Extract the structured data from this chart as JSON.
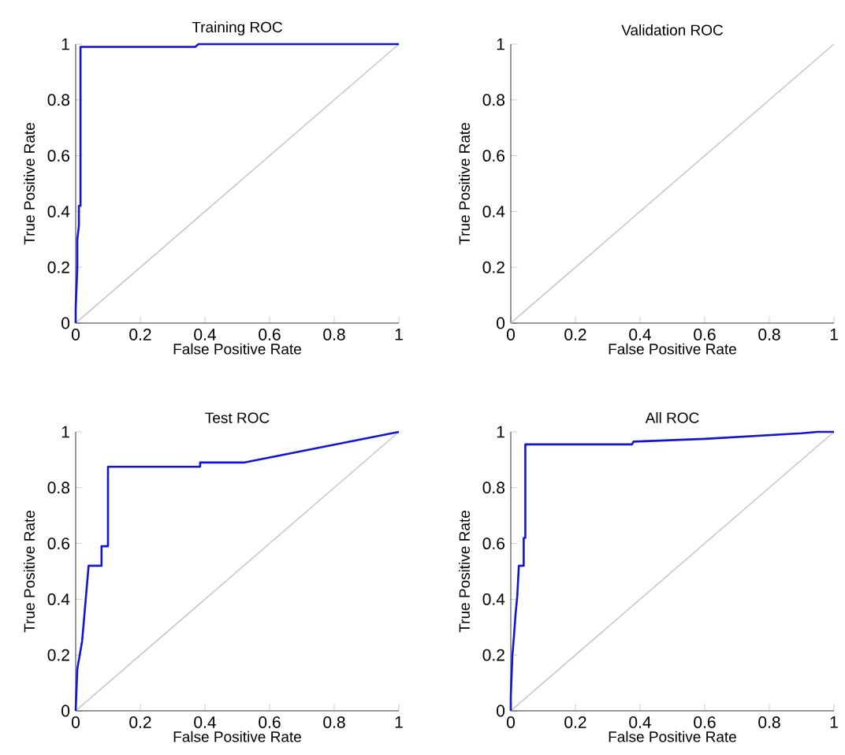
{
  "chart_data": [
    {
      "type": "line",
      "title": "Training ROC",
      "xlabel": "False Positive Rate",
      "ylabel": "True Positive Rate",
      "xlim": [
        0,
        1
      ],
      "ylim": [
        0,
        1
      ],
      "xticks": [
        0,
        0.2,
        0.4,
        0.6,
        0.8,
        1
      ],
      "yticks": [
        0,
        0.2,
        0.4,
        0.6,
        0.8,
        1
      ],
      "marker": "none",
      "line_style": "solid",
      "series": [
        {
          "color": "#c8c8c8",
          "x": [
            0,
            1
          ],
          "values": [
            0,
            1
          ]
        },
        {
          "color": "#1414d2",
          "x": [
            0,
            0,
            0.005,
            0.005,
            0.01,
            0.01,
            0.015,
            0.015,
            0.37,
            0.38,
            1
          ],
          "values": [
            0,
            0.05,
            0.2,
            0.3,
            0.35,
            0.42,
            0.42,
            0.99,
            0.99,
            1,
            1
          ]
        }
      ]
    },
    {
      "type": "line",
      "title": "Validation ROC",
      "xlabel": "False Positive Rate",
      "ylabel": "True Positive Rate",
      "xlim": [
        0,
        1
      ],
      "ylim": [
        0,
        1
      ],
      "xticks": [
        0,
        0.2,
        0.4,
        0.6,
        0.8,
        1
      ],
      "yticks": [
        0,
        0.2,
        0.4,
        0.6,
        0.8,
        1
      ],
      "marker": "none",
      "line_style": "solid",
      "series": [
        {
          "color": "#c8c8c8",
          "x": [
            0,
            1
          ],
          "values": [
            0,
            1
          ]
        }
      ]
    },
    {
      "type": "line",
      "title": "Test ROC",
      "xlabel": "False Positive Rate",
      "ylabel": "True Positive Rate",
      "xlim": [
        0,
        1
      ],
      "ylim": [
        0,
        1
      ],
      "xticks": [
        0,
        0.2,
        0.4,
        0.6,
        0.8,
        1
      ],
      "yticks": [
        0,
        0.2,
        0.4,
        0.6,
        0.8,
        1
      ],
      "marker": "none",
      "line_style": "solid",
      "series": [
        {
          "color": "#c8c8c8",
          "x": [
            0,
            1
          ],
          "values": [
            0,
            1
          ]
        },
        {
          "color": "#1414d2",
          "x": [
            0,
            0.005,
            0.02,
            0.04,
            0.08,
            0.08,
            0.1,
            0.1,
            0.385,
            0.385,
            0.52,
            1
          ],
          "values": [
            0,
            0.15,
            0.25,
            0.52,
            0.52,
            0.59,
            0.59,
            0.875,
            0.875,
            0.89,
            0.89,
            1
          ]
        }
      ]
    },
    {
      "type": "line",
      "title": "All ROC",
      "xlabel": "False Positive Rate",
      "ylabel": "True Positive Rate",
      "xlim": [
        0,
        1
      ],
      "ylim": [
        0,
        1
      ],
      "xticks": [
        0,
        0.2,
        0.4,
        0.6,
        0.8,
        1
      ],
      "yticks": [
        0,
        0.2,
        0.4,
        0.6,
        0.8,
        1
      ],
      "marker": "none",
      "line_style": "solid",
      "series": [
        {
          "color": "#c8c8c8",
          "x": [
            0,
            1
          ],
          "values": [
            0,
            1
          ]
        },
        {
          "color": "#1414d2",
          "x": [
            0,
            0,
            0.005,
            0.01,
            0.015,
            0.02,
            0.025,
            0.04,
            0.04,
            0.045,
            0.045,
            0.375,
            0.38,
            0.6,
            0.9,
            0.95,
            1
          ],
          "values": [
            0,
            0.05,
            0.2,
            0.27,
            0.35,
            0.41,
            0.52,
            0.52,
            0.62,
            0.62,
            0.955,
            0.955,
            0.965,
            0.975,
            0.995,
            1,
            1
          ]
        }
      ]
    }
  ]
}
